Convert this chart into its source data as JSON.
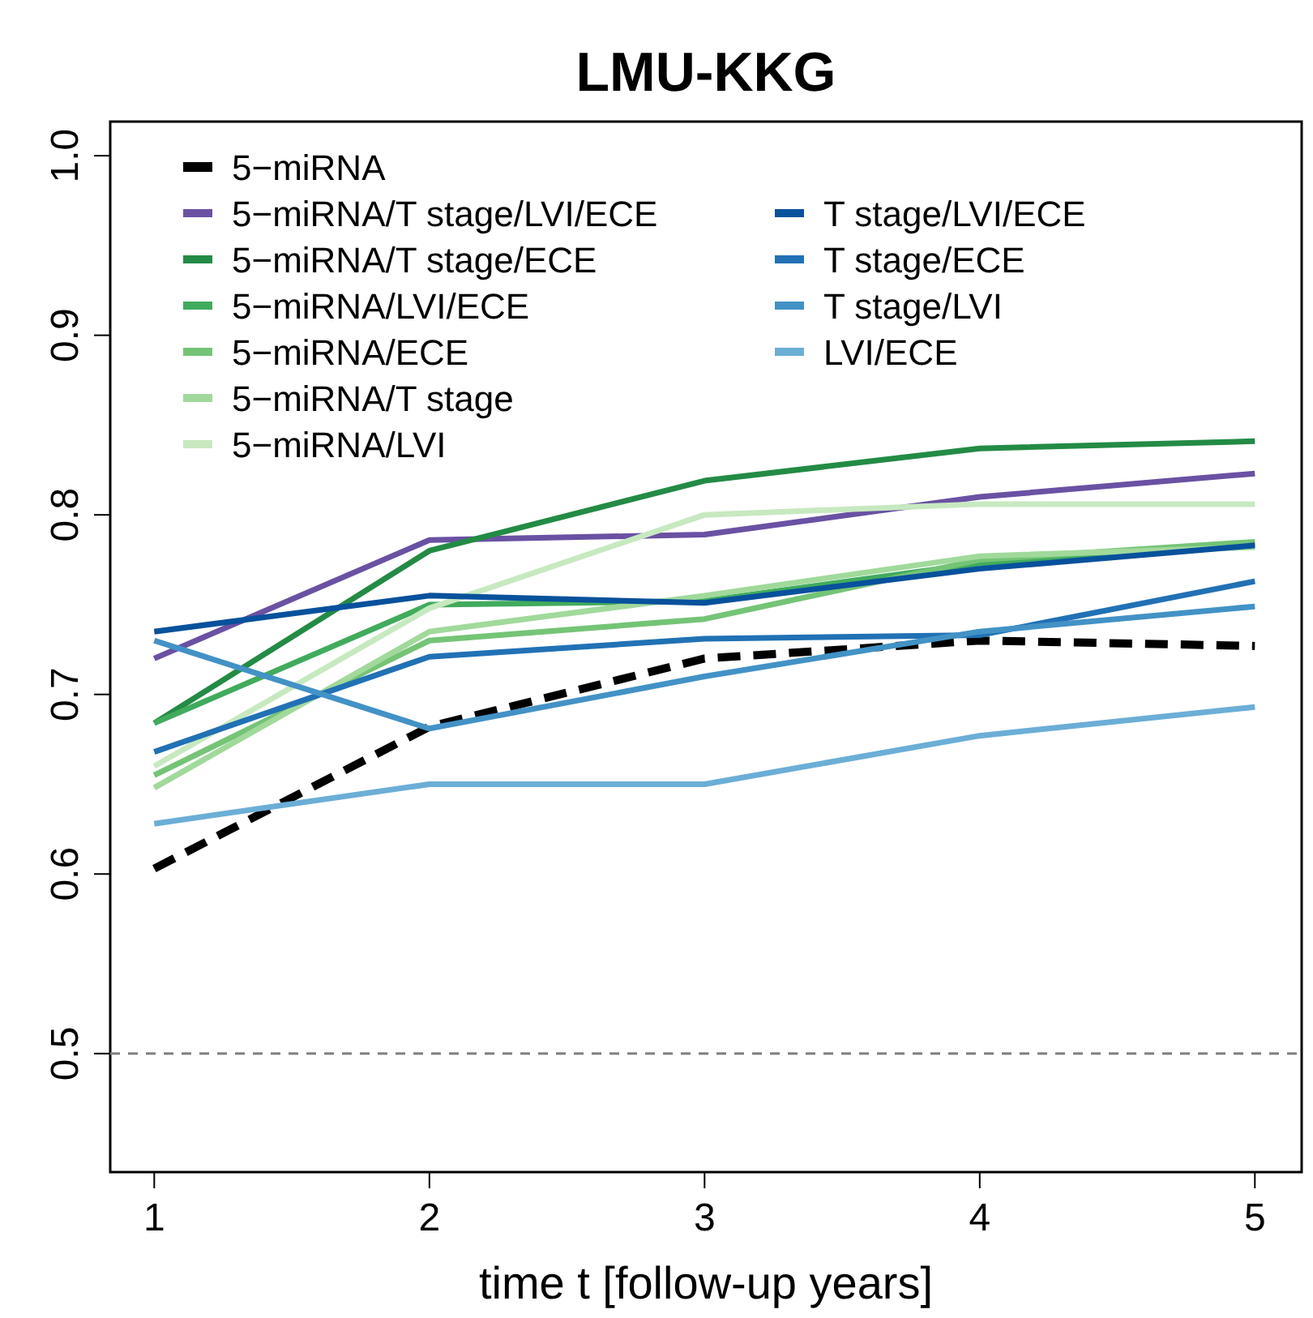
{
  "chart_data": {
    "type": "line",
    "title": "LMU-KKG",
    "xlabel": "time t [follow-up years]",
    "x": [
      1,
      2,
      3,
      4,
      5
    ],
    "xlim": [
      0.84,
      5.17
    ],
    "xticks": [
      1,
      2,
      3,
      4,
      5
    ],
    "ylim": [
      0.434,
      1.019
    ],
    "yticks": [
      0.5,
      0.6,
      0.7,
      0.8,
      0.9,
      {
        "value": 1,
        "label": "1.0"
      }
    ],
    "grid": false,
    "legend": "top left",
    "marker": "none",
    "ref_lines": [
      {
        "axis": "y",
        "value": 0.5,
        "color": "#808080",
        "line_style": "dashed"
      }
    ],
    "series": [
      {
        "name": "5−miRNA",
        "color": "#000000",
        "line_style": "dashed",
        "values": [
          0.603,
          0.682,
          0.72,
          0.73,
          0.727
        ]
      },
      {
        "name": "5−miRNA/T stage/LVI/ECE",
        "color": "#6a51a3",
        "values": [
          0.72,
          0.786,
          0.789,
          0.81,
          0.823
        ]
      },
      {
        "name": "5−miRNA/T stage/ECE",
        "color": "#238b45",
        "values": [
          0.684,
          0.78,
          0.819,
          0.837,
          0.841
        ]
      },
      {
        "name": "5−miRNA/LVI/ECE",
        "color": "#41ab5d",
        "values": [
          0.684,
          0.75,
          0.752,
          0.773,
          0.784
        ]
      },
      {
        "name": "5−miRNA/ECE",
        "color": "#74c476",
        "values": [
          0.655,
          0.73,
          0.742,
          0.775,
          0.785
        ]
      },
      {
        "name": "5−miRNA/T stage",
        "color": "#a1d99b",
        "values": [
          0.648,
          0.735,
          0.755,
          0.777,
          0.782
        ]
      },
      {
        "name": "5−miRNA/LVI",
        "color": "#c7e9c0",
        "values": [
          0.66,
          0.748,
          0.8,
          0.806,
          0.806
        ]
      },
      {
        "name": "T stage/LVI/ECE",
        "color": "#08519c",
        "values": [
          0.735,
          0.755,
          0.751,
          0.77,
          0.783
        ]
      },
      {
        "name": "T stage/ECE",
        "color": "#2171b5",
        "values": [
          0.668,
          0.721,
          0.731,
          0.733,
          0.763
        ]
      },
      {
        "name": "T stage/LVI",
        "color": "#4292c6",
        "values": [
          0.73,
          0.681,
          0.71,
          0.735,
          0.749
        ]
      },
      {
        "name": "LVI/ECE",
        "color": "#6baed6",
        "values": [
          0.628,
          0.65,
          0.65,
          0.677,
          0.693
        ]
      }
    ]
  }
}
